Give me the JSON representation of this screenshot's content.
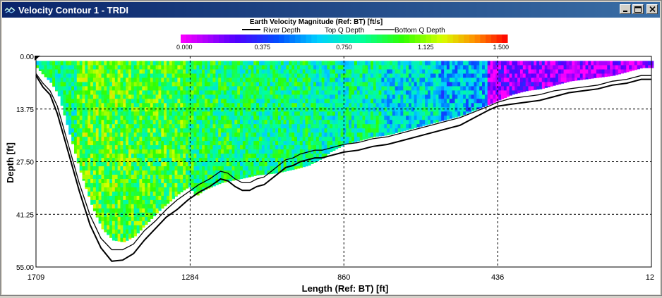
{
  "window": {
    "title": "Velocity Contour 1 - TRDI"
  },
  "chart_data": {
    "type": "heatmap",
    "title": "Earth Velocity Magnitude (Ref: BT) [ft/s]",
    "xlabel": "Length (Ref: BT) [ft]",
    "ylabel": "Depth [ft]",
    "xlim": [
      1709,
      12
    ],
    "ylim": [
      0,
      55
    ],
    "x_ticks": [
      "1709",
      "1284",
      "860",
      "436",
      "12"
    ],
    "y_ticks": [
      "0.00",
      "13.75",
      "27.50",
      "41.25",
      "55.00"
    ],
    "colorbar": {
      "min": 0.0,
      "max": 1.5,
      "ticks": [
        "0.000",
        "0.375",
        "0.750",
        "1.125",
        "1.500"
      ]
    },
    "legend": [
      {
        "name": "River Depth"
      },
      {
        "name": "Top Q Depth"
      },
      {
        "name": "Bottom Q Depth"
      }
    ],
    "river_depth": {
      "x": [
        1709,
        1690,
        1670,
        1650,
        1620,
        1590,
        1560,
        1530,
        1500,
        1470,
        1440,
        1410,
        1380,
        1350,
        1320,
        1290,
        1260,
        1230,
        1200,
        1180,
        1160,
        1140,
        1120,
        1100,
        1080,
        1060,
        1040,
        1020,
        1000,
        980,
        960,
        940,
        920,
        900,
        880,
        860,
        820,
        780,
        740,
        700,
        660,
        620,
        580,
        540,
        500,
        460,
        436,
        400,
        360,
        320,
        280,
        240,
        200,
        160,
        120,
        80,
        40,
        12
      ],
      "values": [
        5,
        8,
        10,
        15,
        25,
        35,
        44,
        50,
        53.5,
        53.2,
        51.5,
        48,
        45,
        42,
        40,
        37.5,
        35.5,
        34,
        32,
        32.5,
        34,
        35,
        35,
        34,
        33.5,
        32,
        30.5,
        29,
        28.5,
        27.5,
        27,
        26.5,
        26.5,
        26,
        25.5,
        25,
        24.5,
        23.5,
        23,
        22,
        21,
        20,
        19,
        18,
        16,
        14,
        13,
        12.5,
        12,
        11.5,
        10.5,
        9.5,
        9,
        8.5,
        7.5,
        7,
        6,
        6
      ]
    },
    "bottom_q_depth": {
      "x": [
        1709,
        1690,
        1670,
        1650,
        1620,
        1590,
        1560,
        1530,
        1500,
        1470,
        1440,
        1410,
        1380,
        1350,
        1320,
        1290,
        1260,
        1230,
        1200,
        1180,
        1160,
        1140,
        1120,
        1100,
        1080,
        1060,
        1040,
        1020,
        1000,
        980,
        960,
        940,
        920,
        900,
        880,
        860,
        820,
        780,
        740,
        700,
        660,
        620,
        580,
        540,
        500,
        460,
        436,
        400,
        360,
        320,
        280,
        240,
        200,
        160,
        120,
        80,
        40,
        12
      ],
      "values": [
        4.5,
        7,
        9,
        13,
        23,
        33,
        41.5,
        47.5,
        50.5,
        50.5,
        49,
        45.5,
        43,
        40,
        37.5,
        35.5,
        33.5,
        32,
        30,
        30.5,
        32,
        33,
        33,
        32,
        31.5,
        30,
        28.5,
        27,
        26.5,
        25.5,
        25,
        24.5,
        24.5,
        24,
        23.5,
        23,
        22.5,
        21.5,
        21,
        20,
        19,
        18,
        17,
        16,
        14.5,
        13,
        12,
        11,
        10.5,
        10,
        9,
        8.5,
        8,
        7.5,
        6.5,
        6,
        5,
        5
      ]
    },
    "data_bottom_depth": {
      "x": [
        1709,
        1690,
        1670,
        1650,
        1620,
        1590,
        1560,
        1530,
        1500,
        1470,
        1440,
        1410,
        1380,
        1350,
        1320,
        1290,
        1270,
        1250,
        1200,
        1150,
        1100,
        1050,
        1000,
        960,
        940,
        920,
        900,
        880,
        860,
        820,
        780,
        740,
        700,
        660,
        620,
        580,
        540,
        500,
        460,
        436,
        400,
        360,
        320,
        280,
        240,
        200,
        160,
        120,
        80,
        40,
        12
      ],
      "values": [
        3,
        5,
        7,
        10,
        20,
        30,
        38.5,
        45,
        48,
        48.5,
        47,
        44,
        41,
        38.5,
        36,
        34,
        36.5,
        35,
        33,
        32,
        31,
        30.5,
        29.5,
        28.5,
        27.5,
        26.5,
        25,
        24,
        23,
        22,
        21,
        20.5,
        19.5,
        18.5,
        17.5,
        16.5,
        15.5,
        14,
        12.5,
        11.5,
        10,
        9,
        8.5,
        7.5,
        6.5,
        6,
        5.5,
        5,
        4,
        3,
        3
      ]
    },
    "velocity_levels": [
      {
        "from": 1709,
        "to": 1600,
        "v": 0.85
      },
      {
        "from": 1600,
        "to": 1450,
        "v": 1.02
      },
      {
        "from": 1450,
        "to": 1300,
        "v": 0.98
      },
      {
        "from": 1300,
        "to": 1150,
        "v": 0.9
      },
      {
        "from": 1150,
        "to": 950,
        "v": 0.85
      },
      {
        "from": 950,
        "to": 760,
        "v": 0.8
      },
      {
        "from": 760,
        "to": 600,
        "v": 0.7
      },
      {
        "from": 600,
        "to": 470,
        "v": 0.6
      },
      {
        "from": 470,
        "to": 300,
        "v": 0.15
      },
      {
        "from": 300,
        "to": 12,
        "v": 0.1
      }
    ]
  }
}
